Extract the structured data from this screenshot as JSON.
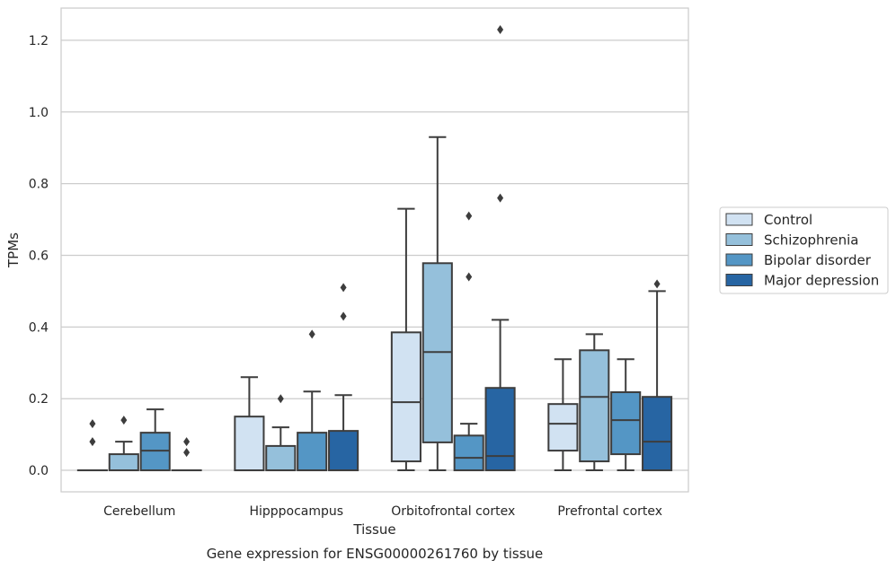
{
  "chart_data": {
    "type": "box",
    "caption": "Gene expression for ENSG00000261760 by tissue",
    "xlabel": "Tissue",
    "ylabel": "TPMs",
    "ylim": [
      -0.06,
      1.29
    ],
    "yticks": [
      0.0,
      0.2,
      0.4,
      0.6,
      0.8,
      1.0,
      1.2
    ],
    "ytick_labels": [
      "0.0",
      "0.2",
      "0.4",
      "0.6",
      "0.8",
      "1.0",
      "1.2"
    ],
    "grid": "horizontal",
    "legend_position": "right",
    "categories": [
      "Cerebellum",
      "Hipppocampus",
      "Orbitofrontal cortex",
      "Prefrontal cortex"
    ],
    "series": [
      {
        "name": "Control",
        "color": "#d1e2f2",
        "boxes": [
          {
            "whislo": 0,
            "q1": 0,
            "med": 0,
            "q3": 0,
            "whishi": 0,
            "fliers": [
              0.08,
              0.13
            ]
          },
          {
            "whislo": 0,
            "q1": 0,
            "med": 0,
            "q3": 0.15,
            "whishi": 0.26,
            "fliers": []
          },
          {
            "whislo": 0,
            "q1": 0.025,
            "med": 0.19,
            "q3": 0.385,
            "whishi": 0.73,
            "fliers": []
          },
          {
            "whislo": 0,
            "q1": 0.055,
            "med": 0.13,
            "q3": 0.185,
            "whishi": 0.31,
            "fliers": []
          }
        ]
      },
      {
        "name": "Schizophrenia",
        "color": "#95c0db",
        "boxes": [
          {
            "whislo": 0,
            "q1": 0,
            "med": 0,
            "q3": 0.045,
            "whishi": 0.08,
            "fliers": [
              0.14
            ]
          },
          {
            "whislo": 0,
            "q1": 0,
            "med": 0,
            "q3": 0.068,
            "whishi": 0.12,
            "fliers": [
              0.2
            ]
          },
          {
            "whislo": 0,
            "q1": 0.078,
            "med": 0.33,
            "q3": 0.578,
            "whishi": 0.93,
            "fliers": []
          },
          {
            "whislo": 0,
            "q1": 0.025,
            "med": 0.205,
            "q3": 0.335,
            "whishi": 0.38,
            "fliers": []
          }
        ]
      },
      {
        "name": "Bipolar disorder",
        "color": "#5496c5",
        "boxes": [
          {
            "whislo": 0,
            "q1": 0,
            "med": 0.055,
            "q3": 0.105,
            "whishi": 0.17,
            "fliers": []
          },
          {
            "whislo": 0,
            "q1": 0,
            "med": 0,
            "q3": 0.105,
            "whishi": 0.22,
            "fliers": [
              0.38
            ]
          },
          {
            "whislo": 0,
            "q1": 0,
            "med": 0.035,
            "q3": 0.097,
            "whishi": 0.13,
            "fliers": [
              0.54,
              0.71
            ]
          },
          {
            "whislo": 0,
            "q1": 0.045,
            "med": 0.14,
            "q3": 0.218,
            "whishi": 0.31,
            "fliers": []
          }
        ]
      },
      {
        "name": "Major depression",
        "color": "#2765a3",
        "boxes": [
          {
            "whislo": 0,
            "q1": 0,
            "med": 0,
            "q3": 0,
            "whishi": 0,
            "fliers": [
              0.05,
              0.08
            ]
          },
          {
            "whislo": 0,
            "q1": 0,
            "med": 0,
            "q3": 0.11,
            "whishi": 0.21,
            "fliers": [
              0.43,
              0.51
            ]
          },
          {
            "whislo": 0,
            "q1": 0,
            "med": 0.04,
            "q3": 0.23,
            "whishi": 0.42,
            "fliers": [
              0.76,
              1.23
            ]
          },
          {
            "whislo": 0,
            "q1": 0,
            "med": 0.08,
            "q3": 0.205,
            "whishi": 0.5,
            "fliers": [
              0.52
            ]
          }
        ]
      }
    ]
  }
}
